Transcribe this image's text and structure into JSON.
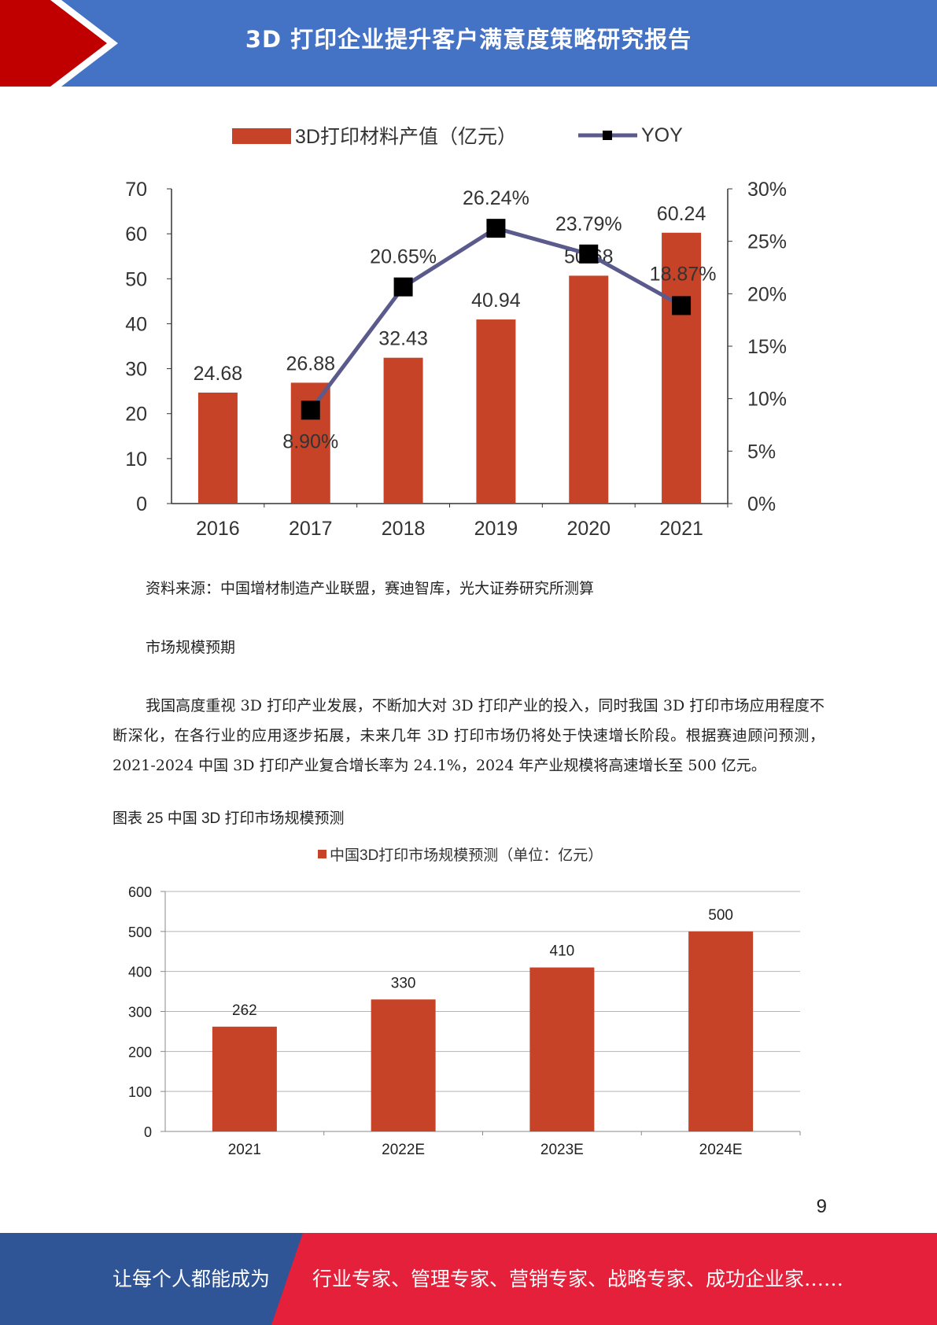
{
  "header": {
    "title": "3D 打印企业提升客户满意度策略研究报告"
  },
  "colors": {
    "header_blue": "#4472c4",
    "accent_red": "#c00000",
    "bar_red": "#c64327",
    "line_navy": "#5a5a8c",
    "footer_blue": "#2f5597",
    "footer_red": "#e5203a"
  },
  "chart_data": [
    {
      "type": "bar",
      "legend": {
        "bar_label": "3D打印材料产值（亿元）",
        "line_label": "YOY",
        "position": "top"
      },
      "categories": [
        "2016",
        "2017",
        "2018",
        "2019",
        "2020",
        "2021"
      ],
      "series": [
        {
          "name": "3D打印材料产值（亿元）",
          "type": "bar",
          "axis": "left",
          "values": [
            24.68,
            26.88,
            32.43,
            40.94,
            50.68,
            60.24
          ],
          "labels": [
            "24.68",
            "26.88",
            "32.43",
            "40.94",
            "50.68",
            "60.24"
          ]
        },
        {
          "name": "YOY",
          "type": "line",
          "axis": "right",
          "values": [
            null,
            8.9,
            20.65,
            26.24,
            23.79,
            18.87
          ],
          "labels": [
            "",
            "8.90%",
            "20.65%",
            "26.24%",
            "23.79%",
            "18.87%"
          ]
        }
      ],
      "y_left": {
        "ylim": [
          0,
          70
        ],
        "ticks": [
          "0",
          "10",
          "20",
          "30",
          "40",
          "50",
          "60",
          "70"
        ]
      },
      "y_right": {
        "ylim": [
          0,
          30
        ],
        "ticks": [
          "0%",
          "5%",
          "10%",
          "15%",
          "20%",
          "25%",
          "30%"
        ]
      },
      "grid": false
    },
    {
      "type": "bar",
      "legend": {
        "label": "中国3D打印市场规模预测（单位：亿元）",
        "position": "top"
      },
      "categories": [
        "2021",
        "2022E",
        "2023E",
        "2024E"
      ],
      "values": [
        262,
        330,
        410,
        500
      ],
      "labels": [
        "262",
        "330",
        "410",
        "500"
      ],
      "ylim": [
        0,
        600
      ],
      "ticks": [
        "0",
        "100",
        "200",
        "300",
        "400",
        "500",
        "600"
      ],
      "grid": true
    }
  ],
  "source": "资料来源：中国增材制造产业联盟，赛迪智库，光大证券研究所测算",
  "section_heading": "市场规模预期",
  "paragraph": "我国高度重视 3D 打印产业发展，不断加大对 3D 打印产业的投入，同时我国 3D 打印市场应用程度不断深化，在各行业的应用逐步拓展，未来几年 3D 打印市场仍将处于快速增长阶段。根据赛迪顾问预测，2021-2024 中国 3D 打印产业复合增长率为 24.1%，2024 年产业规模将高速增长至 500 亿元。",
  "figure_caption": "图表  25  中国 3D 打印市场规模预测",
  "page_number": "9",
  "footer": {
    "left": "让每个人都能成为",
    "right": "行业专家、管理专家、营销专家、战略专家、成功企业家……"
  }
}
